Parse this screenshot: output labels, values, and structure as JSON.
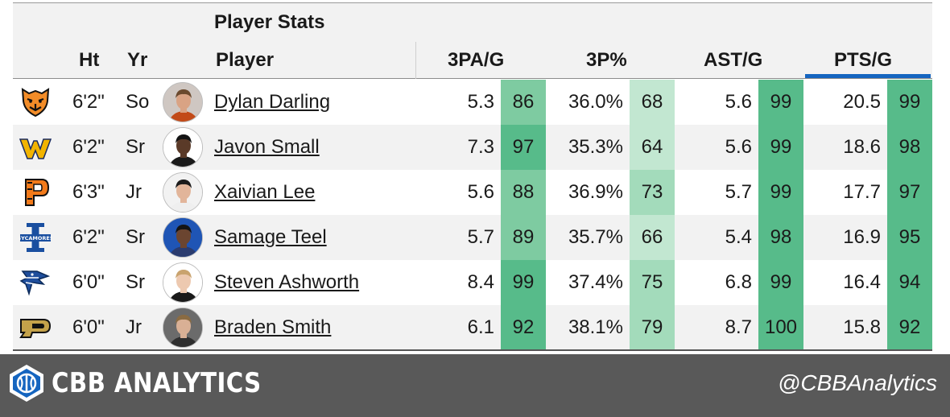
{
  "header": {
    "group_title": "Player Stats",
    "columns": {
      "ht": "Ht",
      "yr": "Yr",
      "player": "Player",
      "threepa": "3PA/G",
      "threep": "3P%",
      "ast": "AST/G",
      "pts": "PTS/G"
    },
    "sorted_column": "PTS/G"
  },
  "colors": {
    "sort_bar": "#1565c0",
    "pct_high": "#57bb8a",
    "pct_mid": "#b7e1cd"
  },
  "players": [
    {
      "team_icon": "tiger-logo-icon",
      "ht": "6'2\"",
      "yr": "So",
      "name": "Dylan Darling",
      "threepa": "5.3",
      "threepa_pct": "86",
      "threep": "36.0%",
      "threep_pct": "68",
      "ast": "5.6",
      "ast_pct": "99",
      "pts": "20.5",
      "pts_pct": "99"
    },
    {
      "team_icon": "wv-logo-icon",
      "ht": "6'2\"",
      "yr": "Sr",
      "name": "Javon Small",
      "threepa": "7.3",
      "threepa_pct": "97",
      "threep": "35.3%",
      "threep_pct": "64",
      "ast": "5.6",
      "ast_pct": "99",
      "pts": "18.6",
      "pts_pct": "98"
    },
    {
      "team_icon": "princeton-p-logo-icon",
      "ht": "6'3\"",
      "yr": "Jr",
      "name": "Xaivian Lee",
      "threepa": "5.6",
      "threepa_pct": "88",
      "threep": "36.9%",
      "threep_pct": "73",
      "ast": "5.7",
      "ast_pct": "99",
      "pts": "17.7",
      "pts_pct": "97"
    },
    {
      "team_icon": "sycamores-logo-icon",
      "ht": "6'2\"",
      "yr": "Sr",
      "name": "Samage Teel",
      "threepa": "5.7",
      "threepa_pct": "89",
      "threep": "35.7%",
      "threep_pct": "66",
      "ast": "5.4",
      "ast_pct": "98",
      "pts": "16.9",
      "pts_pct": "95"
    },
    {
      "team_icon": "bluejay-logo-icon",
      "ht": "6'0\"",
      "yr": "Sr",
      "name": "Steven Ashworth",
      "threepa": "8.4",
      "threepa_pct": "99",
      "threep": "37.4%",
      "threep_pct": "75",
      "ast": "6.8",
      "ast_pct": "99",
      "pts": "16.4",
      "pts_pct": "94"
    },
    {
      "team_icon": "purdue-p-logo-icon",
      "ht": "6'0\"",
      "yr": "Jr",
      "name": "Braden Smith",
      "threepa": "6.1",
      "threepa_pct": "92",
      "threep": "38.1%",
      "threep_pct": "79",
      "ast": "8.7",
      "ast_pct": "100",
      "pts": "15.8",
      "pts_pct": "92"
    }
  ],
  "footer": {
    "brand": "CBB ANALYTICS",
    "handle": "@CBBAnalytics"
  }
}
